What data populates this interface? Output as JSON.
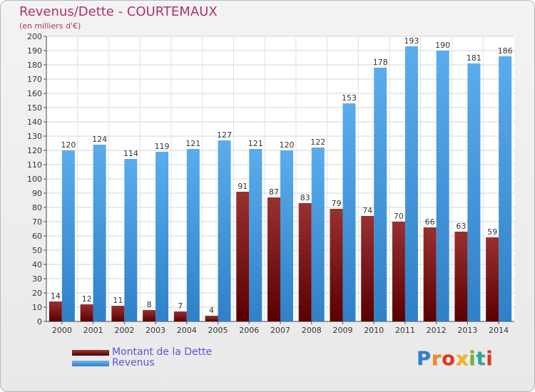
{
  "chart_data": {
    "type": "bar",
    "title": "Revenus/Dette - COURTEMAUX",
    "subtitle": "(en milliers d'€)",
    "categories": [
      "2000",
      "2001",
      "2002",
      "2003",
      "2004",
      "2005",
      "2006",
      "2007",
      "2008",
      "2009",
      "2010",
      "2011",
      "2012",
      "2013",
      "2014"
    ],
    "series": [
      {
        "name": "Montant de la Dette",
        "color": "#7a1414",
        "values": [
          14,
          12,
          11,
          8,
          7,
          4,
          91,
          87,
          83,
          79,
          74,
          70,
          66,
          63,
          59
        ]
      },
      {
        "name": "Revenus",
        "color": "#4a9fe0",
        "values": [
          120,
          124,
          114,
          119,
          121,
          127,
          121,
          120,
          122,
          153,
          178,
          193,
          190,
          181,
          186
        ]
      }
    ],
    "ylim": [
      0,
      200
    ],
    "ytick_step": 10,
    "grid": true,
    "legend_position": "bottom-left"
  },
  "brand": {
    "letters": [
      "P",
      "r",
      "o",
      "x",
      "i",
      "t",
      "i"
    ],
    "colors": [
      "#2e7fd0",
      "#f08a1c",
      "#e8331c",
      "#f3b21a",
      "#6fb630",
      "#2aa6a0",
      "#e8331c"
    ]
  }
}
